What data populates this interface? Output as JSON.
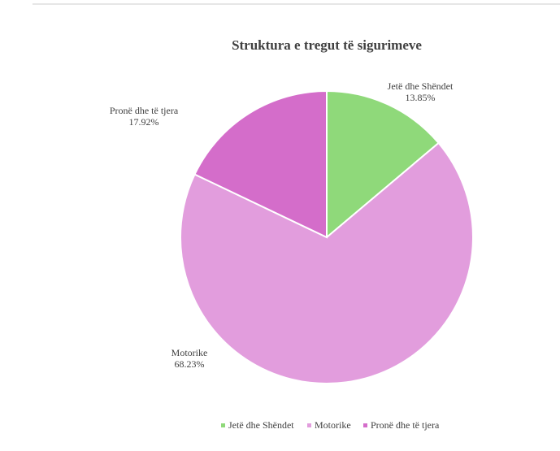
{
  "chart_data": {
    "type": "pie",
    "title": "Struktura e tregut të sigurimeve",
    "categories": [
      "Jetë dhe Shëndet",
      "Motorike",
      "Pronë dhe të tjera"
    ],
    "values": [
      13.85,
      68.23,
      17.92
    ],
    "value_labels": [
      "13.85%",
      "68.23%",
      "17.92%"
    ],
    "colors": [
      "#8fd97a",
      "#e29ddd",
      "#d46dca"
    ],
    "legend": "bottom"
  }
}
